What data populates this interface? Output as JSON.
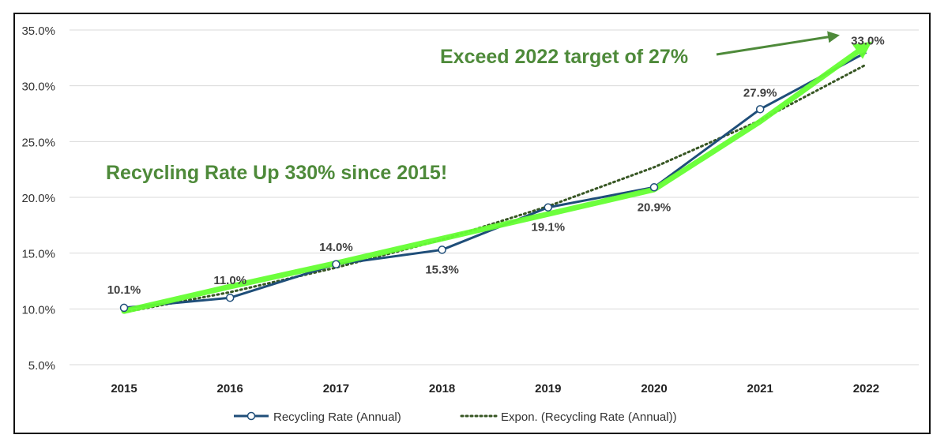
{
  "chart_data": {
    "type": "line",
    "categories": [
      "2015",
      "2016",
      "2017",
      "2018",
      "2019",
      "2020",
      "2021",
      "2022"
    ],
    "y_ticks": [
      "5.0%",
      "10.0%",
      "15.0%",
      "20.0%",
      "25.0%",
      "30.0%",
      "35.0%"
    ],
    "ylim": [
      5,
      35
    ],
    "grid": true,
    "legend_position": "bottom",
    "series": [
      {
        "name": "Recycling Rate (Annual)",
        "values": [
          10.1,
          11.0,
          14.0,
          15.3,
          19.1,
          20.9,
          27.9,
          33.0
        ],
        "labels": [
          "10.1%",
          "11.0%",
          "14.0%",
          "15.3%",
          "19.1%",
          "20.9%",
          "27.9%",
          "33.0%"
        ],
        "color": "#1f4e79",
        "style": "solid-with-markers"
      },
      {
        "name": "Expon. (Recycling Rate (Annual))",
        "values": [
          9.7,
          11.5,
          13.7,
          16.2,
          19.2,
          22.7,
          26.9,
          31.9
        ],
        "color": "#375623",
        "style": "dotted"
      }
    ],
    "highlight_trend": {
      "values": [
        9.8,
        12.0,
        14.1,
        16.3,
        18.5,
        20.7,
        26.8,
        33.6
      ],
      "color": "#66ff33"
    },
    "annotations": [
      {
        "text": "Exceed 2022 target of 27%",
        "color": "#4e8a3a"
      },
      {
        "text": "Recycling Rate Up 330% since 2015!",
        "color": "#4e8a3a"
      }
    ]
  }
}
